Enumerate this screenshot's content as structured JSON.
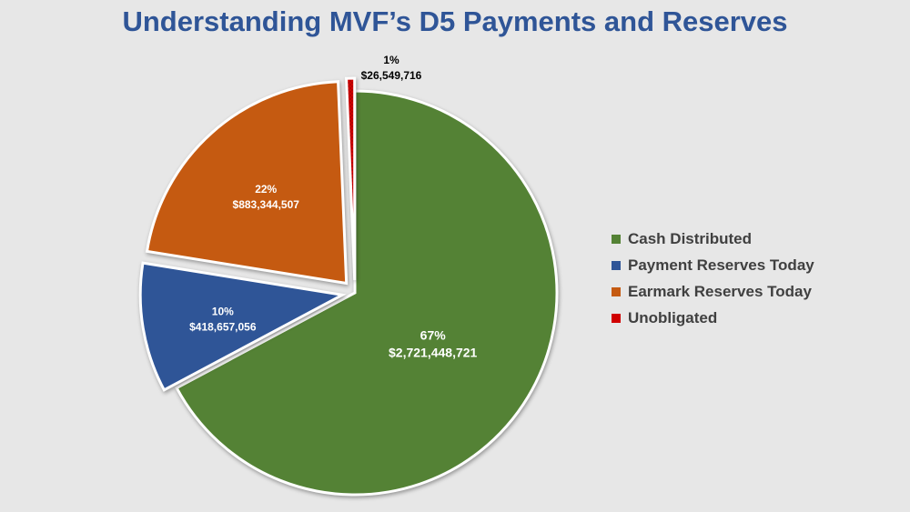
{
  "chart_data": {
    "type": "pie",
    "title": "Understanding MVF’s D5 Payments and Reserves",
    "series": [
      {
        "name": "Cash Distributed",
        "value": 2721448721,
        "percent_label": "67%",
        "value_label": "$2,721,448,721",
        "color": "#548235",
        "exploded": false
      },
      {
        "name": "Payment Reserves Today",
        "value": 418657056,
        "percent_label": "10%",
        "value_label": "$418,657,056",
        "color": "#2f5597",
        "exploded": true
      },
      {
        "name": "Earmark Reserves Today",
        "value": 883344507,
        "percent_label": "22%",
        "value_label": "$883,344,507",
        "color": "#c55a11",
        "exploded": true
      },
      {
        "name": "Unobligated",
        "value": 26549716,
        "percent_label": "1%",
        "value_label": "$26,549,716",
        "color": "#d00000",
        "exploded": true
      }
    ],
    "legend_position": "right"
  }
}
